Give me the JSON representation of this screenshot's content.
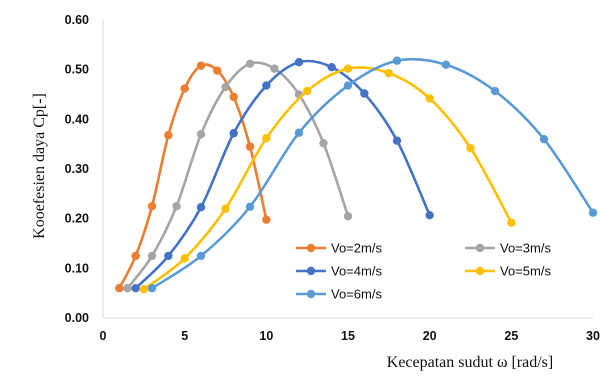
{
  "chart_data": {
    "type": "line",
    "title": "",
    "xlabel": "Kecepatan sudut ω [rad/s]",
    "ylabel": "Kooefesien daya Cp[-]",
    "xlim": [
      0,
      30
    ],
    "ylim": [
      0,
      0.6
    ],
    "x_ticks": [
      "0",
      "5",
      "10",
      "15",
      "20",
      "25",
      "30"
    ],
    "y_ticks": [
      "0.00",
      "0.10",
      "0.20",
      "0.30",
      "0.40",
      "0.50",
      "0.60"
    ],
    "grid": false,
    "smooth": true,
    "legend_position": "lower-right inside plot, 2 columns",
    "series": [
      {
        "name": "Vo=2m/s",
        "color": "#ED7D31",
        "points": [
          [
            1,
            0.06
          ],
          [
            2,
            0.125
          ],
          [
            3,
            0.225
          ],
          [
            4,
            0.368
          ],
          [
            5,
            0.462
          ],
          [
            6,
            0.508
          ],
          [
            7,
            0.498
          ],
          [
            8,
            0.445
          ],
          [
            9,
            0.345
          ],
          [
            10,
            0.198
          ]
        ]
      },
      {
        "name": "Vo=3m/s",
        "color": "#A5A5A5",
        "points": [
          [
            1.5,
            0.06
          ],
          [
            3,
            0.125
          ],
          [
            4.5,
            0.225
          ],
          [
            6,
            0.37
          ],
          [
            7.5,
            0.465
          ],
          [
            9,
            0.512
          ],
          [
            10.5,
            0.502
          ],
          [
            12,
            0.45
          ],
          [
            13.5,
            0.352
          ],
          [
            15,
            0.205
          ]
        ]
      },
      {
        "name": "Vo=4m/s",
        "color": "#4472C4",
        "points": [
          [
            2,
            0.06
          ],
          [
            4,
            0.125
          ],
          [
            6,
            0.223
          ],
          [
            8,
            0.372
          ],
          [
            10,
            0.468
          ],
          [
            12,
            0.515
          ],
          [
            14,
            0.505
          ],
          [
            16,
            0.452
          ],
          [
            18,
            0.357
          ],
          [
            20,
            0.207
          ]
        ]
      },
      {
        "name": "Vo=5m/s",
        "color": "#FFC000",
        "points": [
          [
            2.5,
            0.058
          ],
          [
            5,
            0.12
          ],
          [
            7.5,
            0.22
          ],
          [
            10,
            0.362
          ],
          [
            12.5,
            0.457
          ],
          [
            15,
            0.502
          ],
          [
            17.5,
            0.493
          ],
          [
            20,
            0.442
          ],
          [
            22.5,
            0.342
          ],
          [
            25,
            0.192
          ]
        ]
      },
      {
        "name": "Vo=6m/s",
        "color": "#5B9BD5",
        "points": [
          [
            3,
            0.06
          ],
          [
            6,
            0.125
          ],
          [
            9,
            0.224
          ],
          [
            12,
            0.373
          ],
          [
            15,
            0.468
          ],
          [
            18,
            0.518
          ],
          [
            21,
            0.51
          ],
          [
            24,
            0.457
          ],
          [
            27,
            0.36
          ],
          [
            30,
            0.212
          ]
        ]
      }
    ]
  }
}
